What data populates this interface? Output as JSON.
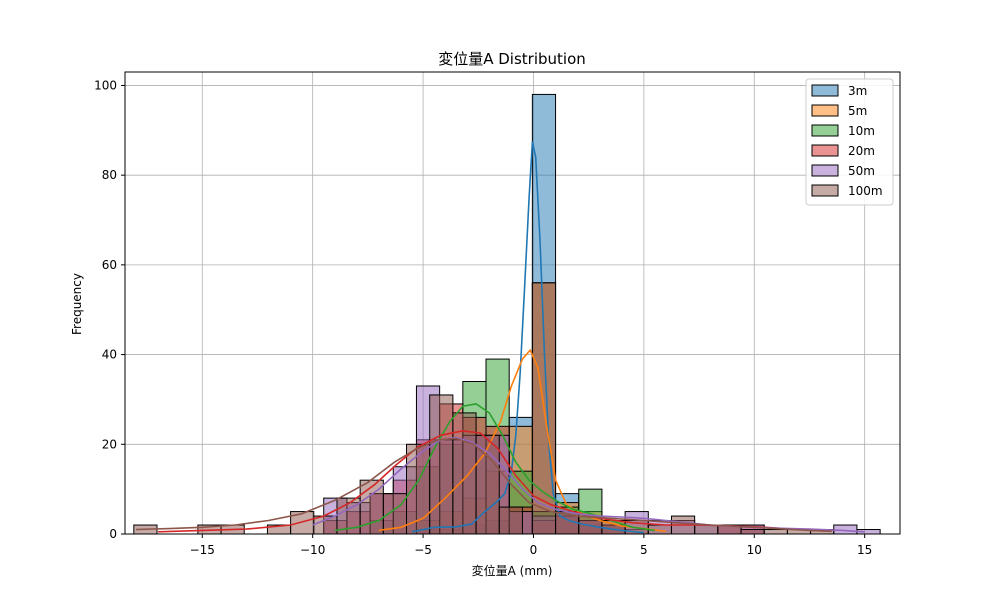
{
  "chart_data": {
    "type": "histogram",
    "title": "変位量A Distribution",
    "xlabel": "変位量A (mm)",
    "ylabel": "Frequency",
    "xlim": [
      -18.5,
      16.6
    ],
    "ylim": [
      0,
      103
    ],
    "x_ticks": [
      -15,
      -10,
      -5,
      0,
      5,
      10,
      15
    ],
    "y_ticks": [
      0,
      20,
      40,
      60,
      80,
      100
    ],
    "x_tick_labels": [
      "−15",
      "−10",
      "−5",
      "0",
      "5",
      "10",
      "15"
    ],
    "y_tick_labels": [
      "0",
      "20",
      "40",
      "60",
      "80",
      "100"
    ],
    "grid": true,
    "legend_position": "top-right",
    "kde_shown": true,
    "series": [
      {
        "name": "3m",
        "color": "#1f77b4",
        "bins": [
          [
            -0.05,
            1.0,
            98
          ],
          [
            1.0,
            2.05,
            9
          ],
          [
            -1.1,
            -0.05,
            26
          ],
          [
            -2.15,
            -1.1,
            3
          ],
          [
            -3.2,
            -2.15,
            2
          ],
          [
            -4.25,
            -3.2,
            1
          ],
          [
            -5.3,
            -4.25,
            1
          ],
          [
            2.05,
            3.1,
            2
          ]
        ]
      },
      {
        "name": "5m",
        "color": "#ff7f0e",
        "bins": [
          [
            -0.05,
            1.0,
            56
          ],
          [
            -1.1,
            -0.05,
            24
          ],
          [
            -2.15,
            -1.1,
            14
          ],
          [
            -3.2,
            -2.15,
            8
          ],
          [
            -4.25,
            -3.2,
            5
          ],
          [
            -5.3,
            -4.25,
            3
          ],
          [
            1.0,
            2.05,
            7
          ],
          [
            2.05,
            3.1,
            5
          ],
          [
            3.1,
            4.15,
            3
          ],
          [
            4.15,
            5.2,
            1
          ]
        ]
      },
      {
        "name": "10m",
        "color": "#2ca02c",
        "bins": [
          [
            -0.05,
            1.0,
            5
          ],
          [
            -1.1,
            -0.05,
            14
          ],
          [
            -2.15,
            -1.1,
            39
          ],
          [
            -3.2,
            -2.15,
            34
          ],
          [
            -4.25,
            -3.2,
            20
          ],
          [
            -5.3,
            -4.25,
            15
          ],
          [
            -6.35,
            -5.3,
            5
          ],
          [
            -7.4,
            -6.35,
            3
          ],
          [
            1.0,
            2.05,
            6
          ],
          [
            2.05,
            3.1,
            10
          ],
          [
            3.1,
            4.15,
            2
          ]
        ]
      },
      {
        "name": "20m",
        "color": "#d62728",
        "bins": [
          [
            -0.05,
            1.0,
            3
          ],
          [
            -1.1,
            -0.05,
            6
          ],
          [
            -2.15,
            -1.1,
            24
          ],
          [
            -3.2,
            -2.15,
            26
          ],
          [
            -4.25,
            -3.2,
            29
          ],
          [
            -5.3,
            -4.25,
            21
          ],
          [
            -6.35,
            -5.3,
            12
          ],
          [
            -7.4,
            -6.35,
            9
          ],
          [
            -8.45,
            -7.4,
            5
          ],
          [
            -9.5,
            -8.45,
            3
          ],
          [
            1.0,
            2.05,
            4
          ],
          [
            2.05,
            3.1,
            3
          ],
          [
            3.1,
            4.15,
            2
          ],
          [
            8.35,
            9.4,
            2
          ],
          [
            9.4,
            10.45,
            2
          ]
        ]
      },
      {
        "name": "50m",
        "color": "#9467bd",
        "bins": [
          [
            -0.05,
            1.0,
            4
          ],
          [
            -1.1,
            -0.05,
            5
          ],
          [
            -2.15,
            -1.1,
            22
          ],
          [
            -3.2,
            -2.15,
            22
          ],
          [
            -4.25,
            -3.2,
            21
          ],
          [
            -5.3,
            -4.25,
            33
          ],
          [
            -6.35,
            -5.3,
            15
          ],
          [
            -7.4,
            -6.35,
            9
          ],
          [
            -8.45,
            -7.4,
            7
          ],
          [
            -9.5,
            -8.45,
            8
          ],
          [
            1.0,
            2.05,
            5
          ],
          [
            2.05,
            3.1,
            3
          ],
          [
            3.1,
            4.15,
            2
          ],
          [
            4.15,
            5.2,
            5
          ],
          [
            5.2,
            6.25,
            3
          ],
          [
            6.25,
            7.3,
            3
          ],
          [
            7.3,
            8.35,
            2
          ],
          [
            8.35,
            9.4,
            2
          ],
          [
            9.4,
            10.45,
            2
          ],
          [
            13.6,
            14.65,
            2
          ],
          [
            14.65,
            15.7,
            1
          ]
        ]
      },
      {
        "name": "100m",
        "color": "#8c564b",
        "bins": [
          [
            -18.1,
            -17.05,
            2
          ],
          [
            -15.2,
            -14.15,
            2
          ],
          [
            -14.15,
            -13.1,
            2
          ],
          [
            -12.05,
            -11.0,
            2
          ],
          [
            -11.0,
            -9.95,
            5
          ],
          [
            -9.95,
            -8.9,
            4
          ],
          [
            -8.9,
            -7.85,
            8
          ],
          [
            -7.85,
            -6.8,
            12
          ],
          [
            -6.8,
            -5.75,
            9
          ],
          [
            -5.75,
            -4.7,
            20
          ],
          [
            -4.7,
            -3.65,
            31
          ],
          [
            -3.65,
            -2.6,
            27
          ],
          [
            -2.6,
            -1.55,
            22
          ],
          [
            -1.55,
            -0.5,
            6
          ],
          [
            -0.05,
            1.0,
            56
          ],
          [
            1.0,
            2.05,
            5
          ],
          [
            2.05,
            3.1,
            4
          ],
          [
            3.1,
            4.15,
            3
          ],
          [
            4.15,
            5.2,
            3
          ],
          [
            5.2,
            6.25,
            2
          ],
          [
            6.25,
            7.3,
            4
          ],
          [
            7.3,
            8.35,
            2
          ],
          [
            8.35,
            9.4,
            2
          ],
          [
            9.4,
            10.45,
            1
          ],
          [
            10.45,
            11.5,
            1
          ],
          [
            11.5,
            12.55,
            1
          ],
          [
            12.55,
            13.6,
            1
          ]
        ]
      }
    ],
    "kde": [
      {
        "name": "3m",
        "color": "#1f77b4",
        "points": [
          [
            -5.5,
            0.5
          ],
          [
            -4.5,
            1.5
          ],
          [
            -3.5,
            1.6
          ],
          [
            -2.8,
            2.2
          ],
          [
            -2.2,
            5
          ],
          [
            -1.7,
            7
          ],
          [
            -1.3,
            9
          ],
          [
            -1.0,
            14
          ],
          [
            -0.8,
            22
          ],
          [
            -0.6,
            36
          ],
          [
            -0.4,
            55
          ],
          [
            -0.2,
            75
          ],
          [
            -0.05,
            87.5
          ],
          [
            0.1,
            84
          ],
          [
            0.3,
            65
          ],
          [
            0.5,
            40
          ],
          [
            0.7,
            20
          ],
          [
            0.9,
            9
          ],
          [
            1.2,
            4
          ],
          [
            1.6,
            3
          ],
          [
            2.2,
            2.2
          ],
          [
            3,
            1.5
          ],
          [
            4,
            0.8
          ],
          [
            5,
            0.3
          ]
        ]
      },
      {
        "name": "5m",
        "color": "#ff7f0e",
        "points": [
          [
            -7,
            0.8
          ],
          [
            -6,
            1.5
          ],
          [
            -5,
            3.5
          ],
          [
            -4,
            8
          ],
          [
            -3,
            13
          ],
          [
            -2.2,
            18
          ],
          [
            -1.5,
            25
          ],
          [
            -1.0,
            33
          ],
          [
            -0.5,
            39
          ],
          [
            -0.15,
            41
          ],
          [
            0.2,
            37
          ],
          [
            0.6,
            24
          ],
          [
            1.0,
            12
          ],
          [
            1.5,
            6.5
          ],
          [
            2.2,
            4.5
          ],
          [
            3,
            3
          ],
          [
            4,
            1.8
          ],
          [
            5,
            1.2
          ],
          [
            6,
            0.6
          ]
        ]
      },
      {
        "name": "10m",
        "color": "#2ca02c",
        "points": [
          [
            -9,
            0.8
          ],
          [
            -8,
            1.5
          ],
          [
            -7,
            3
          ],
          [
            -6,
            6.5
          ],
          [
            -5.2,
            12
          ],
          [
            -4.5,
            19
          ],
          [
            -3.8,
            25
          ],
          [
            -3.2,
            28.5
          ],
          [
            -2.6,
            29
          ],
          [
            -2.0,
            27
          ],
          [
            -1.4,
            22
          ],
          [
            -0.8,
            16
          ],
          [
            -0.2,
            12
          ],
          [
            0.4,
            9.5
          ],
          [
            1.0,
            7.5
          ],
          [
            1.8,
            5.5
          ],
          [
            2.6,
            4.5
          ],
          [
            3.5,
            3
          ],
          [
            4.5,
            1.5
          ],
          [
            5.5,
            0.8
          ]
        ]
      },
      {
        "name": "20m",
        "color": "#d62728",
        "points": [
          [
            -17,
            0.5
          ],
          [
            -15,
            0.8
          ],
          [
            -13,
            1.1
          ],
          [
            -11,
            2
          ],
          [
            -9.5,
            4
          ],
          [
            -8.3,
            7
          ],
          [
            -7.2,
            11
          ],
          [
            -6.2,
            15.5
          ],
          [
            -5.2,
            19.5
          ],
          [
            -4.2,
            22
          ],
          [
            -3.2,
            23
          ],
          [
            -2.4,
            22.5
          ],
          [
            -1.6,
            19
          ],
          [
            -0.8,
            13
          ],
          [
            0,
            8.5
          ],
          [
            0.8,
            6.5
          ],
          [
            1.8,
            5
          ],
          [
            3,
            3.5
          ],
          [
            4.5,
            2.5
          ],
          [
            6,
            2
          ],
          [
            7.5,
            2
          ],
          [
            9,
            1.8
          ],
          [
            10.5,
            1.5
          ],
          [
            12,
            1
          ],
          [
            13.5,
            0.6
          ]
        ]
      },
      {
        "name": "50m",
        "color": "#9467bd",
        "points": [
          [
            -10,
            2
          ],
          [
            -9,
            4
          ],
          [
            -8,
            6.5
          ],
          [
            -7,
            10
          ],
          [
            -6,
            14.5
          ],
          [
            -5,
            18.5
          ],
          [
            -4.2,
            21
          ],
          [
            -3.5,
            21.5
          ],
          [
            -2.8,
            20.5
          ],
          [
            -2.0,
            18
          ],
          [
            -1.2,
            14
          ],
          [
            -0.5,
            10
          ],
          [
            0.2,
            7
          ],
          [
            1,
            5.5
          ],
          [
            2,
            4.5
          ],
          [
            3,
            4
          ],
          [
            4,
            3.8
          ],
          [
            5,
            3.5
          ],
          [
            6,
            3
          ],
          [
            7,
            2.5
          ],
          [
            8,
            2
          ],
          [
            9.5,
            1.6
          ],
          [
            11,
            1.3
          ],
          [
            12.5,
            1.1
          ],
          [
            14,
            0.8
          ],
          [
            15,
            0.5
          ]
        ]
      },
      {
        "name": "100m",
        "color": "#8c564b",
        "points": [
          [
            -18,
            1
          ],
          [
            -16.5,
            1.2
          ],
          [
            -15,
            1.5
          ],
          [
            -13.5,
            2
          ],
          [
            -12,
            3
          ],
          [
            -10.5,
            4.5
          ],
          [
            -9,
            7.5
          ],
          [
            -7.5,
            11.5
          ],
          [
            -6.3,
            16
          ],
          [
            -5.3,
            19
          ],
          [
            -4.3,
            21
          ],
          [
            -3.5,
            21.3
          ],
          [
            -2.7,
            20
          ],
          [
            -1.9,
            16.5
          ],
          [
            -1.0,
            11
          ],
          [
            -0.2,
            7
          ],
          [
            0.8,
            5
          ],
          [
            2,
            4
          ],
          [
            3.5,
            3.5
          ],
          [
            5,
            3
          ],
          [
            6.5,
            2.5
          ],
          [
            8,
            2
          ],
          [
            9.5,
            1.6
          ],
          [
            11,
            1.2
          ],
          [
            12.5,
            0.8
          ],
          [
            13.5,
            0.6
          ]
        ]
      }
    ]
  }
}
